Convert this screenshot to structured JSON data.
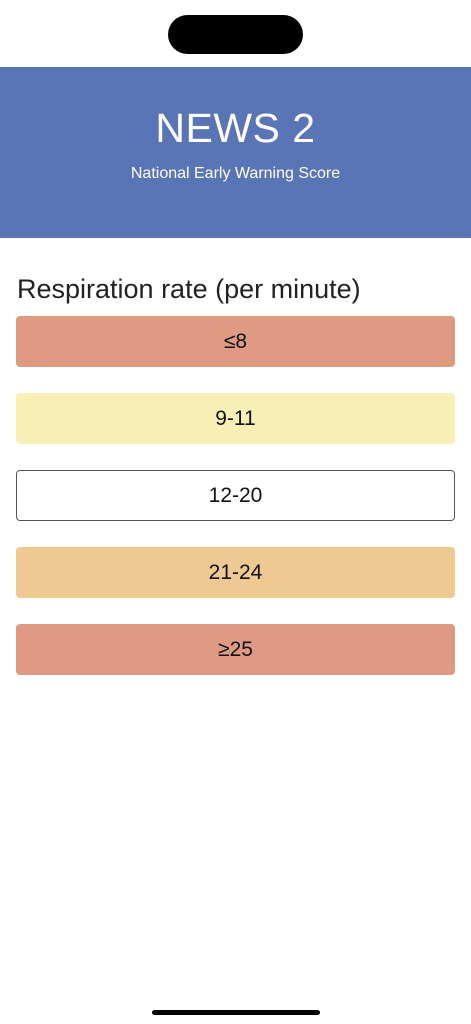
{
  "header": {
    "title": "NEWS 2",
    "subtitle": "National Early Warning Score"
  },
  "question": {
    "title": "Respiration rate (per minute)"
  },
  "options": [
    {
      "label": "≤8",
      "color": "#df9a84"
    },
    {
      "label": "9-11",
      "color": "#f8f0b6"
    },
    {
      "label": "12-20",
      "color": "#ffffff"
    },
    {
      "label": "21-24",
      "color": "#efc992"
    },
    {
      "label": "≥25",
      "color": "#df9a84"
    }
  ],
  "colors": {
    "header_bg": "#5a75b6"
  }
}
